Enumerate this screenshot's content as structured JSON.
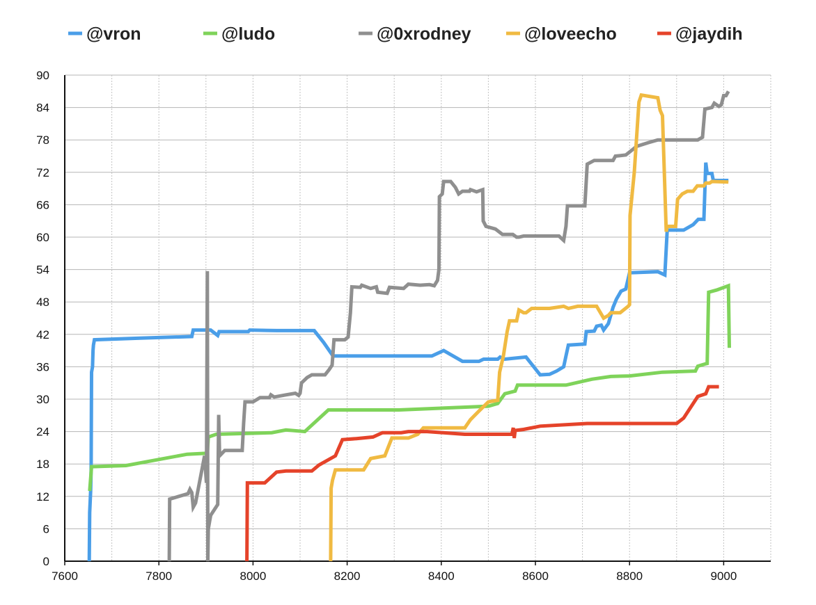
{
  "chart_data": {
    "type": "line",
    "title": "",
    "xlabel": "",
    "ylabel": "",
    "xlim": [
      7600,
      9100
    ],
    "ylim": [
      0,
      90
    ],
    "x_ticks": [
      7600,
      7800,
      8000,
      8200,
      8400,
      8600,
      8800,
      9000
    ],
    "y_ticks": [
      0,
      6,
      12,
      18,
      24,
      30,
      36,
      42,
      48,
      54,
      60,
      66,
      72,
      78,
      84,
      90
    ],
    "x_tick_labels": [
      "7600",
      "7800",
      "8000",
      "8200",
      "8400",
      "8600",
      "8800",
      "9000"
    ],
    "y_tick_labels": [
      "0",
      "6",
      "12",
      "18",
      "24",
      "30",
      "36",
      "42",
      "48",
      "54",
      "60",
      "66",
      "72",
      "78",
      "84",
      "90"
    ],
    "grid": {
      "horizontal": true,
      "vertical": true
    },
    "legend_position": "top",
    "series": [
      {
        "name": "@vron",
        "color": "#4a9ee8",
        "points": [
          [
            7652,
            0
          ],
          [
            7653,
            9
          ],
          [
            7655,
            13
          ],
          [
            7656,
            17
          ],
          [
            7657,
            35
          ],
          [
            7659,
            36
          ],
          [
            7660,
            39
          ],
          [
            7661,
            40
          ],
          [
            7663,
            41
          ],
          [
            7760,
            41.3
          ],
          [
            7870,
            41.6
          ],
          [
            7873,
            42.8
          ],
          [
            7910,
            42.8
          ],
          [
            7925,
            41.8
          ],
          [
            7928,
            42.5
          ],
          [
            7990,
            42.5
          ],
          [
            7993,
            42.8
          ],
          [
            8050,
            42.7
          ],
          [
            8130,
            42.7
          ],
          [
            8150,
            40.5
          ],
          [
            8170,
            38
          ],
          [
            8380,
            38
          ],
          [
            8405,
            39
          ],
          [
            8445,
            37
          ],
          [
            8480,
            37
          ],
          [
            8490,
            37.4
          ],
          [
            8520,
            37.4
          ],
          [
            8525,
            37.8
          ],
          [
            8535,
            37.4
          ],
          [
            8580,
            37.8
          ],
          [
            8610,
            34.5
          ],
          [
            8630,
            34.6
          ],
          [
            8645,
            35.2
          ],
          [
            8660,
            36
          ],
          [
            8665,
            38
          ],
          [
            8670,
            40
          ],
          [
            8705,
            40.2
          ],
          [
            8708,
            42.5
          ],
          [
            8725,
            42.6
          ],
          [
            8730,
            43.5
          ],
          [
            8740,
            43.7
          ],
          [
            8745,
            42.8
          ],
          [
            8755,
            44
          ],
          [
            8765,
            47
          ],
          [
            8772,
            48.5
          ],
          [
            8782,
            50
          ],
          [
            8792,
            50.4
          ],
          [
            8800,
            53.4
          ],
          [
            8860,
            53.6
          ],
          [
            8875,
            53
          ],
          [
            8880,
            61.3
          ],
          [
            8915,
            61.3
          ],
          [
            8935,
            62.3
          ],
          [
            8946,
            63.3
          ],
          [
            8958,
            63.3
          ],
          [
            8962,
            73.8
          ],
          [
            8965,
            71.8
          ],
          [
            8975,
            71.8
          ],
          [
            8978,
            70.5
          ],
          [
            9010,
            70.5
          ]
        ]
      },
      {
        "name": "@ludo",
        "color": "#7fd35a",
        "points": [
          [
            7653,
            13
          ],
          [
            7657,
            17.5
          ],
          [
            7730,
            17.7
          ],
          [
            7860,
            19.8
          ],
          [
            7903,
            20
          ],
          [
            7905,
            23
          ],
          [
            7922,
            23.5
          ],
          [
            8040,
            23.8
          ],
          [
            8070,
            24.3
          ],
          [
            8110,
            24
          ],
          [
            8160,
            28
          ],
          [
            8310,
            28
          ],
          [
            8500,
            28.7
          ],
          [
            8520,
            29.2
          ],
          [
            8535,
            31
          ],
          [
            8557,
            31.5
          ],
          [
            8562,
            32.6
          ],
          [
            8665,
            32.6
          ],
          [
            8720,
            33.7
          ],
          [
            8760,
            34.2
          ],
          [
            8800,
            34.3
          ],
          [
            8870,
            35
          ],
          [
            8940,
            35.2
          ],
          [
            8945,
            36.1
          ],
          [
            8960,
            36.5
          ],
          [
            8965,
            36.6
          ],
          [
            8968,
            49.8
          ],
          [
            8985,
            50.2
          ],
          [
            9010,
            51
          ],
          [
            9012,
            39.5
          ]
        ]
      },
      {
        "name": "@0xrodney",
        "color": "#8f8f8f",
        "points": [
          [
            7822,
            0
          ],
          [
            7823,
            11.5
          ],
          [
            7862,
            12.5
          ],
          [
            7866,
            13.3
          ],
          [
            7870,
            12.7
          ],
          [
            7873,
            10
          ],
          [
            7878,
            10.8
          ],
          [
            7897,
            19.5
          ],
          [
            7901,
            14.5
          ],
          [
            7903,
            53.7
          ],
          [
            7904,
            0
          ],
          [
            7905,
            6
          ],
          [
            7908,
            7.5
          ],
          [
            7910,
            8.5
          ],
          [
            7925,
            10.5
          ],
          [
            7927,
            27.1
          ],
          [
            7929,
            19.5
          ],
          [
            7940,
            20.5
          ],
          [
            7965,
            20.5
          ],
          [
            7977,
            20.5
          ],
          [
            7980,
            25.5
          ],
          [
            7983,
            29.5
          ],
          [
            8000,
            29.5
          ],
          [
            8015,
            30.3
          ],
          [
            8035,
            30.3
          ],
          [
            8038,
            30.8
          ],
          [
            8045,
            30.4
          ],
          [
            8070,
            30.8
          ],
          [
            8090,
            31.1
          ],
          [
            8097,
            30.7
          ],
          [
            8100,
            31.1
          ],
          [
            8103,
            33
          ],
          [
            8115,
            34
          ],
          [
            8125,
            34.5
          ],
          [
            8153,
            34.5
          ],
          [
            8162,
            35.5
          ],
          [
            8168,
            36.3
          ],
          [
            8172,
            41
          ],
          [
            8195,
            41
          ],
          [
            8202,
            41.5
          ],
          [
            8207,
            46
          ],
          [
            8210,
            50.8
          ],
          [
            8228,
            50.7
          ],
          [
            8231,
            51.1
          ],
          [
            8250,
            50.5
          ],
          [
            8262,
            50.8
          ],
          [
            8265,
            49.8
          ],
          [
            8285,
            49.6
          ],
          [
            8290,
            50.7
          ],
          [
            8320,
            50.5
          ],
          [
            8330,
            51.3
          ],
          [
            8355,
            51.1
          ],
          [
            8375,
            51.2
          ],
          [
            8385,
            51
          ],
          [
            8392,
            52
          ],
          [
            8395,
            54
          ],
          [
            8396,
            67.5
          ],
          [
            8402,
            68
          ],
          [
            8405,
            70.3
          ],
          [
            8420,
            70.3
          ],
          [
            8430,
            69.2
          ],
          [
            8437,
            68
          ],
          [
            8445,
            68.5
          ],
          [
            8460,
            68.5
          ],
          [
            8462,
            68.8
          ],
          [
            8475,
            68.4
          ],
          [
            8488,
            68.8
          ],
          [
            8489,
            63
          ],
          [
            8495,
            62
          ],
          [
            8515,
            61.5
          ],
          [
            8530,
            60.5
          ],
          [
            8552,
            60.5
          ],
          [
            8560,
            60
          ],
          [
            8565,
            60
          ],
          [
            8575,
            60.2
          ],
          [
            8650,
            60.2
          ],
          [
            8660,
            59.4
          ],
          [
            8665,
            62
          ],
          [
            8668,
            65.8
          ],
          [
            8705,
            65.8
          ],
          [
            8710,
            73.5
          ],
          [
            8725,
            74.2
          ],
          [
            8765,
            74.2
          ],
          [
            8770,
            75
          ],
          [
            8792,
            75.2
          ],
          [
            8815,
            76.8
          ],
          [
            8840,
            77.5
          ],
          [
            8860,
            78
          ],
          [
            8945,
            78
          ],
          [
            8955,
            78.5
          ],
          [
            8960,
            83.7
          ],
          [
            8975,
            84
          ],
          [
            8980,
            84.8
          ],
          [
            8990,
            84.2
          ],
          [
            8995,
            84.5
          ],
          [
            9000,
            86.2
          ],
          [
            9005,
            86.2
          ],
          [
            9010,
            87
          ]
        ]
      },
      {
        "name": "@loveecho",
        "color": "#f0ba42",
        "points": [
          [
            8165,
            0
          ],
          [
            8166,
            13.5
          ],
          [
            8169,
            15
          ],
          [
            8175,
            16.9
          ],
          [
            8235,
            16.9
          ],
          [
            8250,
            19
          ],
          [
            8280,
            19.5
          ],
          [
            8295,
            22.8
          ],
          [
            8330,
            22.8
          ],
          [
            8350,
            23.5
          ],
          [
            8362,
            24.7
          ],
          [
            8450,
            24.7
          ],
          [
            8462,
            26.2
          ],
          [
            8480,
            27.8
          ],
          [
            8500,
            29.5
          ],
          [
            8520,
            29.8
          ],
          [
            8524,
            35
          ],
          [
            8532,
            38
          ],
          [
            8540,
            42.5
          ],
          [
            8545,
            44.5
          ],
          [
            8560,
            44.5
          ],
          [
            8565,
            46.5
          ],
          [
            8575,
            46
          ],
          [
            8580,
            46
          ],
          [
            8592,
            46.8
          ],
          [
            8630,
            46.8
          ],
          [
            8660,
            47.2
          ],
          [
            8670,
            46.8
          ],
          [
            8690,
            47.2
          ],
          [
            8730,
            47.2
          ],
          [
            8745,
            45
          ],
          [
            8755,
            45.5
          ],
          [
            8760,
            46
          ],
          [
            8780,
            46
          ],
          [
            8797,
            47.2
          ],
          [
            8800,
            47.5
          ],
          [
            8801,
            64
          ],
          [
            8810,
            72
          ],
          [
            8820,
            85
          ],
          [
            8825,
            86.3
          ],
          [
            8860,
            85.8
          ],
          [
            8865,
            83.5
          ],
          [
            8870,
            82.5
          ],
          [
            8878,
            61
          ],
          [
            8880,
            62
          ],
          [
            8898,
            62
          ],
          [
            8902,
            67
          ],
          [
            8912,
            68
          ],
          [
            8923,
            68.5
          ],
          [
            8935,
            68.5
          ],
          [
            8944,
            69.5
          ],
          [
            8958,
            69.5
          ],
          [
            8962,
            70
          ],
          [
            8970,
            70
          ],
          [
            8975,
            70.3
          ],
          [
            9010,
            70.2
          ]
        ]
      },
      {
        "name": "@jaydih",
        "color": "#e5432a",
        "points": [
          [
            7987,
            0
          ],
          [
            7988,
            14.5
          ],
          [
            8025,
            14.5
          ],
          [
            8035,
            15.3
          ],
          [
            8050,
            16.5
          ],
          [
            8070,
            16.7
          ],
          [
            8125,
            16.7
          ],
          [
            8140,
            17.8
          ],
          [
            8175,
            19.5
          ],
          [
            8190,
            22.5
          ],
          [
            8220,
            22.7
          ],
          [
            8255,
            23
          ],
          [
            8275,
            23.8
          ],
          [
            8315,
            23.8
          ],
          [
            8330,
            24
          ],
          [
            8370,
            24
          ],
          [
            8450,
            23.5
          ],
          [
            8550,
            23.5
          ],
          [
            8553,
            24.7
          ],
          [
            8555,
            22.8
          ],
          [
            8557,
            24.2
          ],
          [
            8575,
            24.4
          ],
          [
            8610,
            25
          ],
          [
            8710,
            25.5
          ],
          [
            8900,
            25.5
          ],
          [
            8915,
            26.5
          ],
          [
            8945,
            30.5
          ],
          [
            8962,
            31
          ],
          [
            8968,
            32.3
          ],
          [
            8990,
            32.3
          ]
        ]
      }
    ]
  }
}
